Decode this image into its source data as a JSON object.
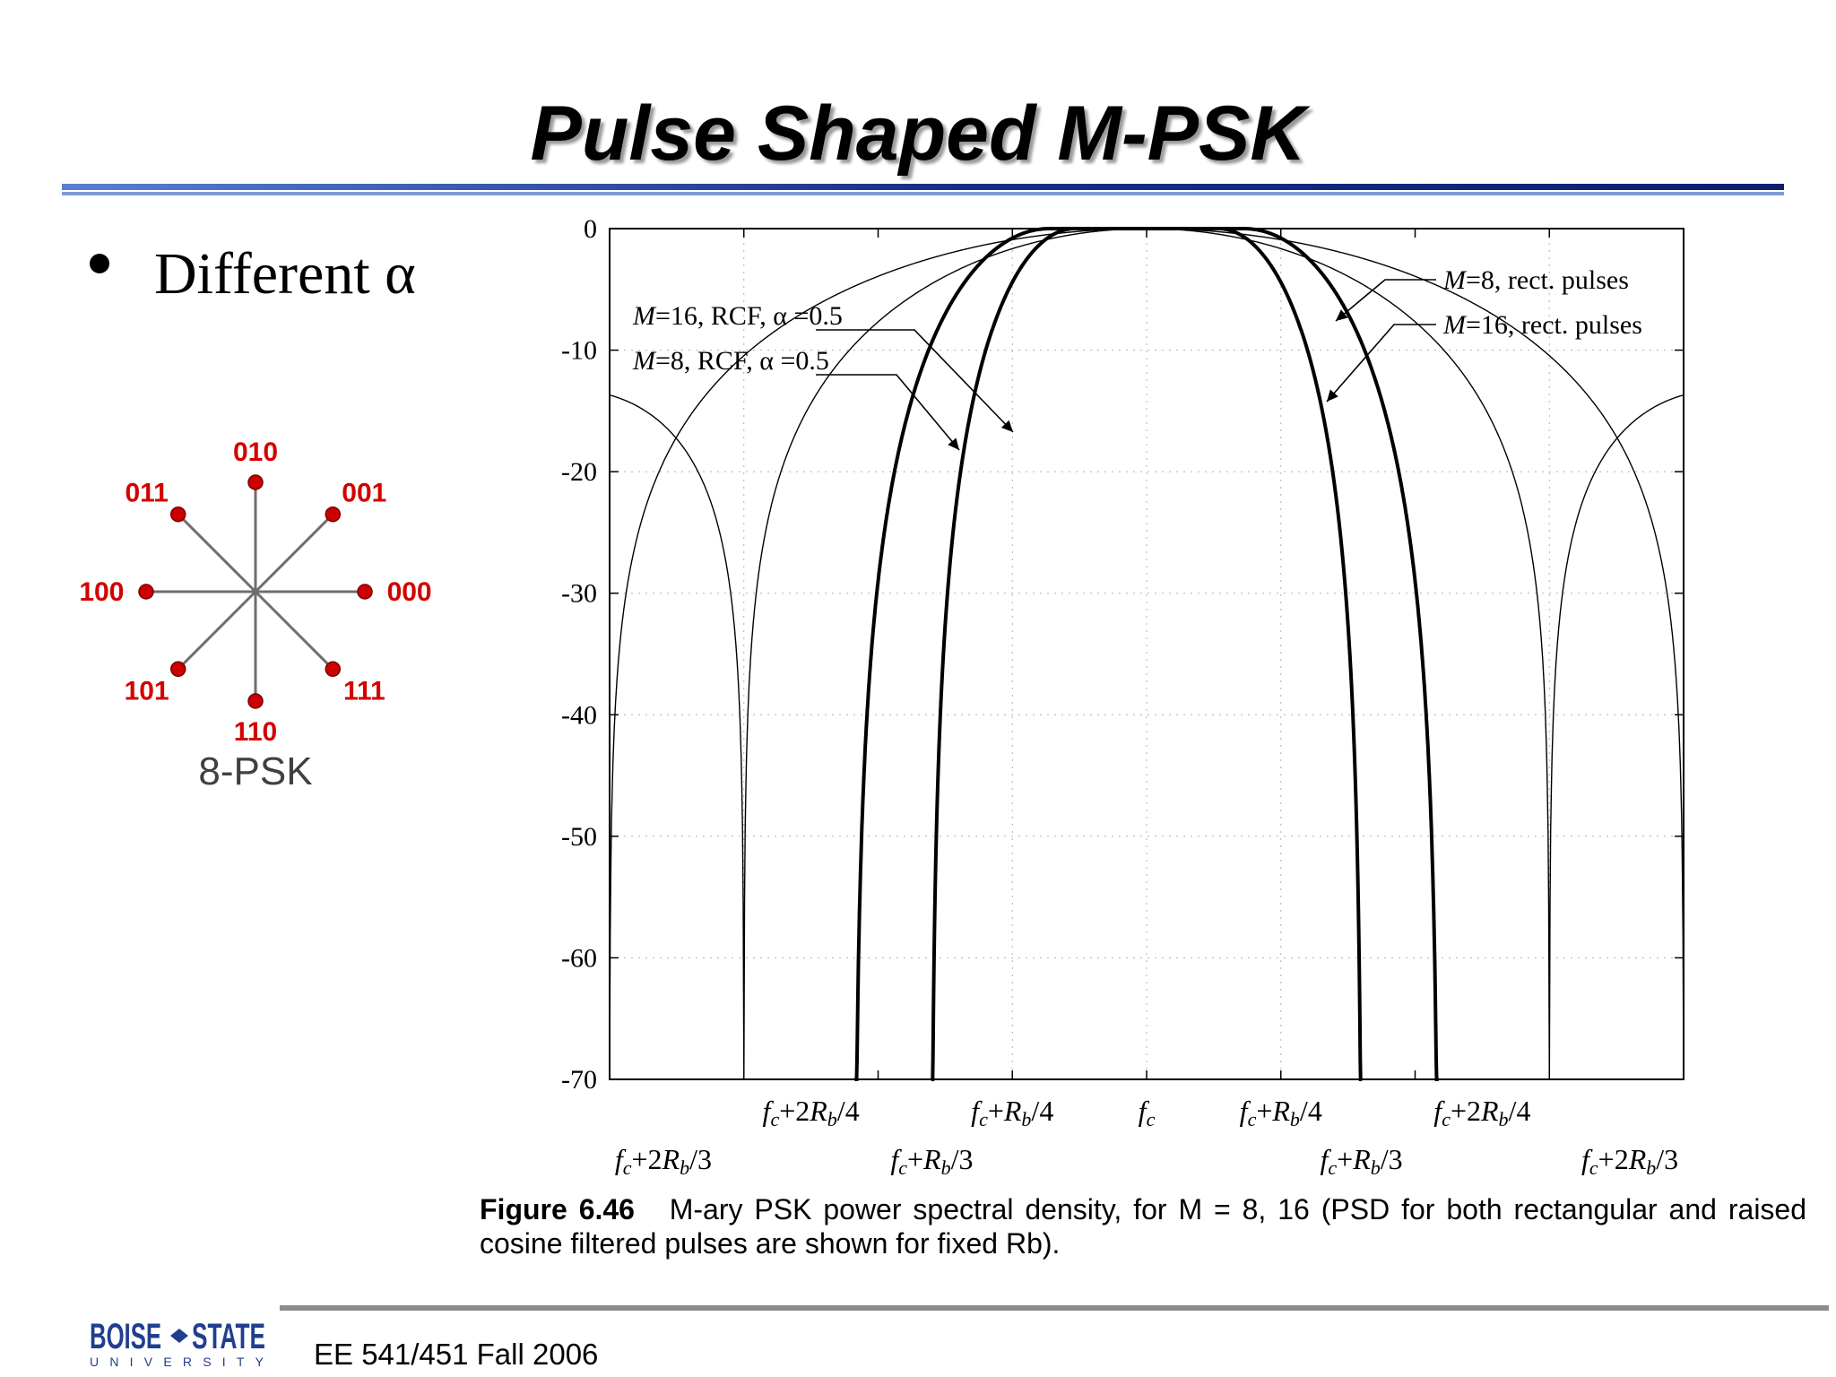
{
  "slide": {
    "title": "Pulse Shaped M-PSK",
    "bullet": "Different α",
    "footer": "EE 541/451 Fall 2006",
    "logo": {
      "top": "BOISE",
      "top2": "STATE",
      "bottom": "UNIVERSITY"
    }
  },
  "constellation": {
    "caption": "8-PSK",
    "points": [
      {
        "label": "000",
        "angle_deg": 0
      },
      {
        "label": "001",
        "angle_deg": 45
      },
      {
        "label": "010",
        "angle_deg": 90
      },
      {
        "label": "011",
        "angle_deg": 135
      },
      {
        "label": "100",
        "angle_deg": 180
      },
      {
        "label": "101",
        "angle_deg": 225
      },
      {
        "label": "110",
        "angle_deg": 270
      },
      {
        "label": "111",
        "angle_deg": 315
      }
    ],
    "point_color": "#cc0000"
  },
  "chart_data": {
    "type": "line",
    "ylim": [
      -70,
      0
    ],
    "yticks": [
      "0",
      "-10",
      "-20",
      "-30",
      "-40",
      "-50",
      "-60",
      "-70"
    ],
    "xticks_row1": [
      "fc+2Rb/4",
      "fc+Rb/4",
      "fc",
      "fc+Rb/4",
      "fc+2Rb/4"
    ],
    "xticks_row2": [
      "fc+2Rb/3",
      "fc+Rb/3",
      "fc+Rb/3",
      "fc+2Rb/3"
    ],
    "annotations": [
      "M=8, rect. pulses",
      "M=16, rect. pulses",
      "M=16, RCF, α =0.5",
      "M=8, RCF, α =0.5"
    ],
    "series": [
      {
        "name": "M=8, rect. pulses",
        "style": "thin"
      },
      {
        "name": "M=16, rect. pulses",
        "style": "thin"
      },
      {
        "name": "M=16, RCF, α =0.5",
        "style": "thick"
      },
      {
        "name": "M=8, RCF, α =0.5",
        "style": "thick"
      }
    ],
    "grid": true
  },
  "figure_caption": {
    "label": "Figure 6.46",
    "text": "M-ary PSK power spectral density, for M = 8, 16 (PSD for both rectangular and raised cosine filtered pulses are shown for fixed Rb)."
  }
}
